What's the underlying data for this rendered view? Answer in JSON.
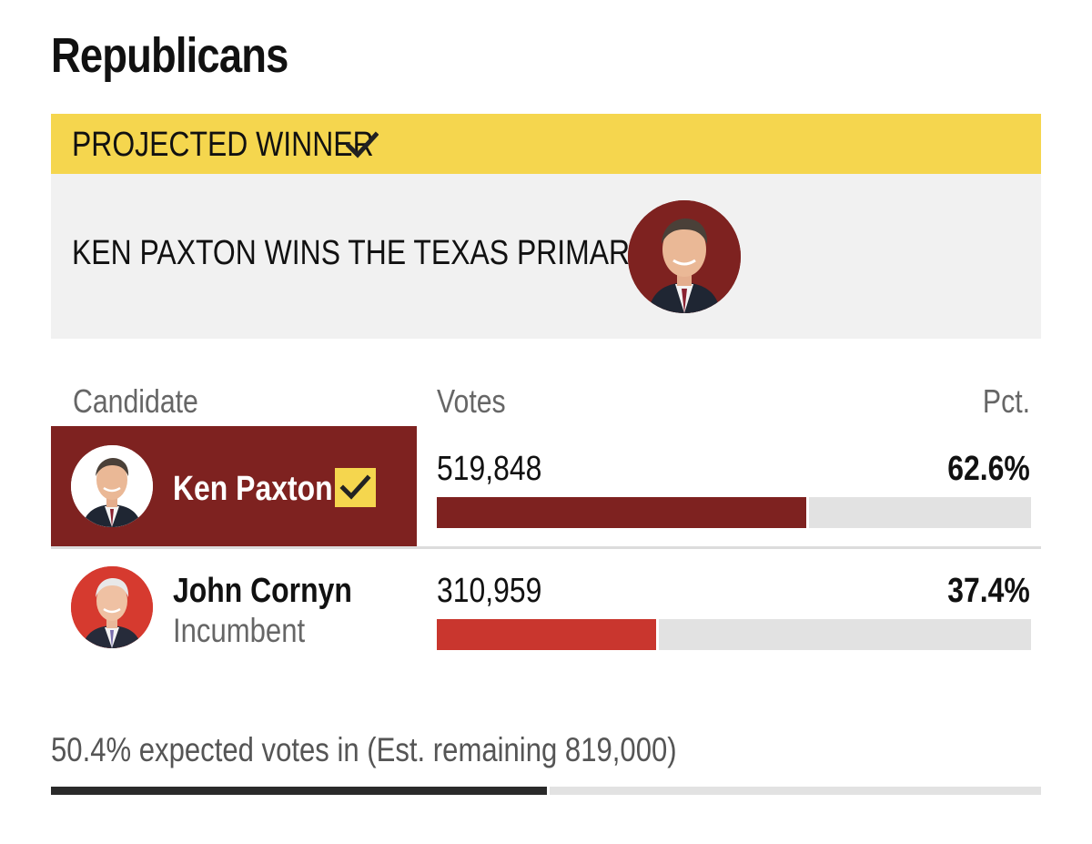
{
  "party": {
    "title": "Republicans"
  },
  "banner": {
    "label": "PROJECTED WINNER",
    "icon": "checkmark-icon",
    "color": "#f5d64e"
  },
  "winner_card": {
    "headline": "KEN PAXTON WINS THE TEXAS PRIMARY"
  },
  "table": {
    "headers": {
      "candidate": "Candidate",
      "votes": "Votes",
      "pct": "Pct."
    },
    "rows": [
      {
        "name": "Ken Paxton",
        "subtitle": "",
        "votes": "519,848",
        "pct": "62.6%",
        "share": 0.626,
        "winner": true,
        "bar_color": "#7e2220"
      },
      {
        "name": "John Cornyn",
        "subtitle": "Incumbent",
        "votes": "310,959",
        "pct": "37.4%",
        "share": 0.374,
        "winner": false,
        "bar_color": "#c9362e"
      }
    ]
  },
  "expected": {
    "text": "50.4% expected votes in (Est. remaining 819,000)",
    "fraction": 0.504
  },
  "colors": {
    "winner_dark": "#7e2220",
    "gop_red": "#c9362e",
    "banner_yellow": "#f5d64e"
  }
}
